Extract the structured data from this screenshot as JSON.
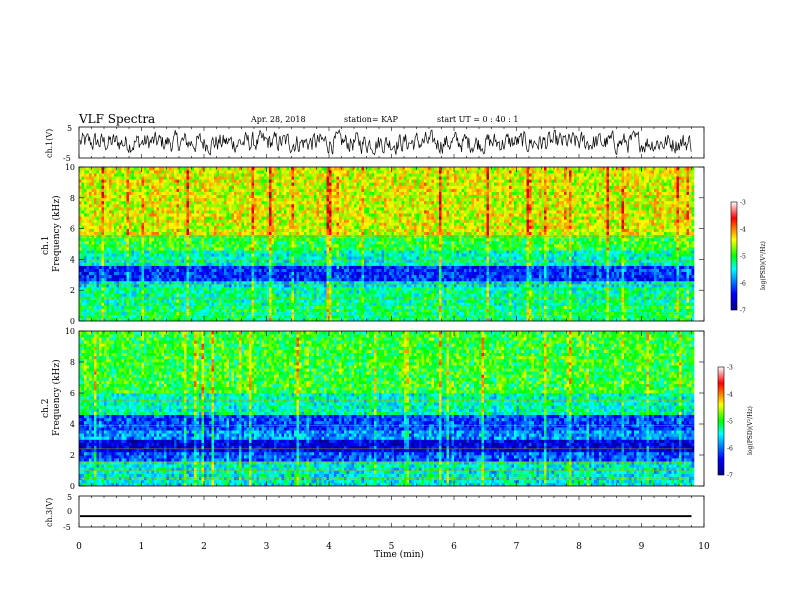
{
  "header": {
    "title": "VLF Spectra",
    "date": "Apr. 28, 2018",
    "station": "station= KAP",
    "start": "start UT =  0 : 40 : 1"
  },
  "colors": {
    "frame": "#000000",
    "background": "#ffffff",
    "colormap": [
      "#00008f",
      "#0000ff",
      "#00ffff",
      "#00ff00",
      "#ffff00",
      "#ff0000",
      "#800000"
    ]
  },
  "chart_data": [
    {
      "type": "line",
      "id": "ch1-waveform",
      "ylabel": "ch.1(V)",
      "xlim": [
        0,
        10
      ],
      "ylim": [
        -5,
        5
      ],
      "yticks": [
        "5",
        "-5"
      ],
      "description_values": {
        "mean": 0,
        "typical_amplitude": 2.5,
        "max_abs": 4
      },
      "color": "#000000"
    },
    {
      "type": "heatmap",
      "id": "ch1-spectrogram",
      "ylabel_top": "ch.1",
      "ylabel": "Frequency (kHz)",
      "xlim": [
        0,
        10
      ],
      "data_end_min": 9.8,
      "ylim": [
        0,
        10
      ],
      "yticks": [
        "0",
        "2",
        "4",
        "6",
        "8",
        "10"
      ],
      "colorbar": {
        "label": "log(PSD)(V²/Hz)",
        "range": [
          -7,
          -3
        ],
        "ticks": [
          "-3",
          "-4",
          "-5",
          "-6",
          "-7"
        ]
      },
      "bands": [
        {
          "from": 0,
          "to": 1,
          "level": -5.2
        },
        {
          "from": 1,
          "to": 2,
          "level": -5.3
        },
        {
          "from": 2,
          "to": 2.6,
          "level": -5.6
        },
        {
          "from": 2.6,
          "to": 3.6,
          "level": -6.3
        },
        {
          "from": 3.6,
          "to": 4.6,
          "level": -5.4
        },
        {
          "from": 4.6,
          "to": 5.5,
          "level": -5.0
        },
        {
          "from": 5.5,
          "to": 10,
          "level": -4.5
        }
      ]
    },
    {
      "type": "heatmap",
      "id": "ch2-spectrogram",
      "ylabel_top": "ch.2",
      "ylabel": "Frequency (kHz)",
      "xlim": [
        0,
        10
      ],
      "data_end_min": 9.8,
      "ylim": [
        0,
        10
      ],
      "yticks": [
        "0",
        "2",
        "4",
        "6",
        "8",
        "10"
      ],
      "colorbar": {
        "label": "log(PSD)(V²/Hz)",
        "range": [
          -7,
          -3
        ],
        "ticks": [
          "-3",
          "-4",
          "-5",
          "-6",
          "-7"
        ]
      },
      "bands": [
        {
          "from": 0,
          "to": 1.5,
          "level": -5.5
        },
        {
          "from": 1.5,
          "to": 2,
          "level": -6.1
        },
        {
          "from": 2,
          "to": 3,
          "level": -6.6
        },
        {
          "from": 3,
          "to": 3.5,
          "level": -5.9
        },
        {
          "from": 3.5,
          "to": 4.5,
          "level": -6.2
        },
        {
          "from": 4.5,
          "to": 6,
          "level": -5.4
        },
        {
          "from": 6,
          "to": 10,
          "level": -5.0
        }
      ]
    },
    {
      "type": "line",
      "id": "ch3-waveform",
      "ylabel": "ch.3(V)",
      "xlabel": "Time (min)",
      "xlim": [
        0,
        10
      ],
      "ylim": [
        -5,
        5
      ],
      "yticks": [
        "5",
        "0",
        "-5"
      ],
      "xticks": [
        "0",
        "1",
        "2",
        "3",
        "4",
        "5",
        "6",
        "7",
        "8",
        "9",
        "10"
      ],
      "description_values": {
        "mean": -1.5,
        "thickness_V": 0.6
      },
      "color": "#000000"
    }
  ]
}
